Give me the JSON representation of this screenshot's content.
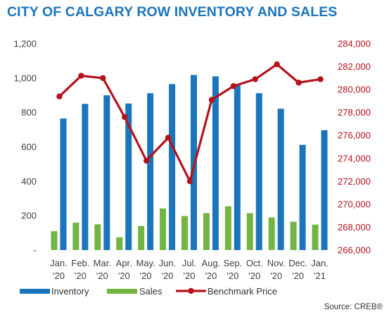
{
  "title": "CITY OF CALGARY ROW INVENTORY AND SALES",
  "source": "Source: CREB®",
  "chart_data": {
    "type": "bar",
    "title": "CITY OF CALGARY ROW INVENTORY AND SALES",
    "categories": [
      [
        "Jan.",
        "'20"
      ],
      [
        "Feb.",
        "'20"
      ],
      [
        "Mar.",
        "'20"
      ],
      [
        "Apr.",
        "'20"
      ],
      [
        "May.",
        "'20"
      ],
      [
        "Jun.",
        "'20"
      ],
      [
        "Jul.",
        "'20"
      ],
      [
        "Aug.",
        "'20"
      ],
      [
        "Sep.",
        "'20"
      ],
      [
        "Oct.",
        "'20"
      ],
      [
        "Nov.",
        "'20"
      ],
      [
        "Dec.",
        "'20"
      ],
      [
        "Jan.",
        "'21"
      ]
    ],
    "series": [
      {
        "name": "Inventory",
        "type": "bar",
        "axis": "left",
        "color": "#1a75bc",
        "values": [
          765,
          850,
          900,
          852,
          912,
          965,
          1018,
          1010,
          958,
          912,
          822,
          612,
          697
        ]
      },
      {
        "name": "Sales",
        "type": "bar",
        "axis": "left",
        "color": "#72b543",
        "values": [
          110,
          160,
          150,
          75,
          140,
          242,
          198,
          215,
          255,
          215,
          190,
          165,
          148
        ]
      },
      {
        "name": "Benchmark Price",
        "type": "line",
        "axis": "right",
        "color": "#b5121b",
        "values": [
          279400,
          281200,
          281000,
          277600,
          273800,
          275800,
          272000,
          279100,
          280300,
          280900,
          282200,
          280600,
          280900
        ]
      }
    ],
    "y_left": {
      "min": 0,
      "max": 1200,
      "step": 200,
      "tick_labels": [
        "-",
        "200",
        "400",
        "600",
        "800",
        "1,000",
        "1,200"
      ]
    },
    "y_right": {
      "min": 266000,
      "max": 284000,
      "step": 2000,
      "tick_labels": [
        "266,000",
        "268,000",
        "270,000",
        "272,000",
        "274,000",
        "276,000",
        "278,000",
        "280,000",
        "282,000",
        "284,000"
      ]
    },
    "grid": false,
    "legend_position": "bottom-left"
  }
}
